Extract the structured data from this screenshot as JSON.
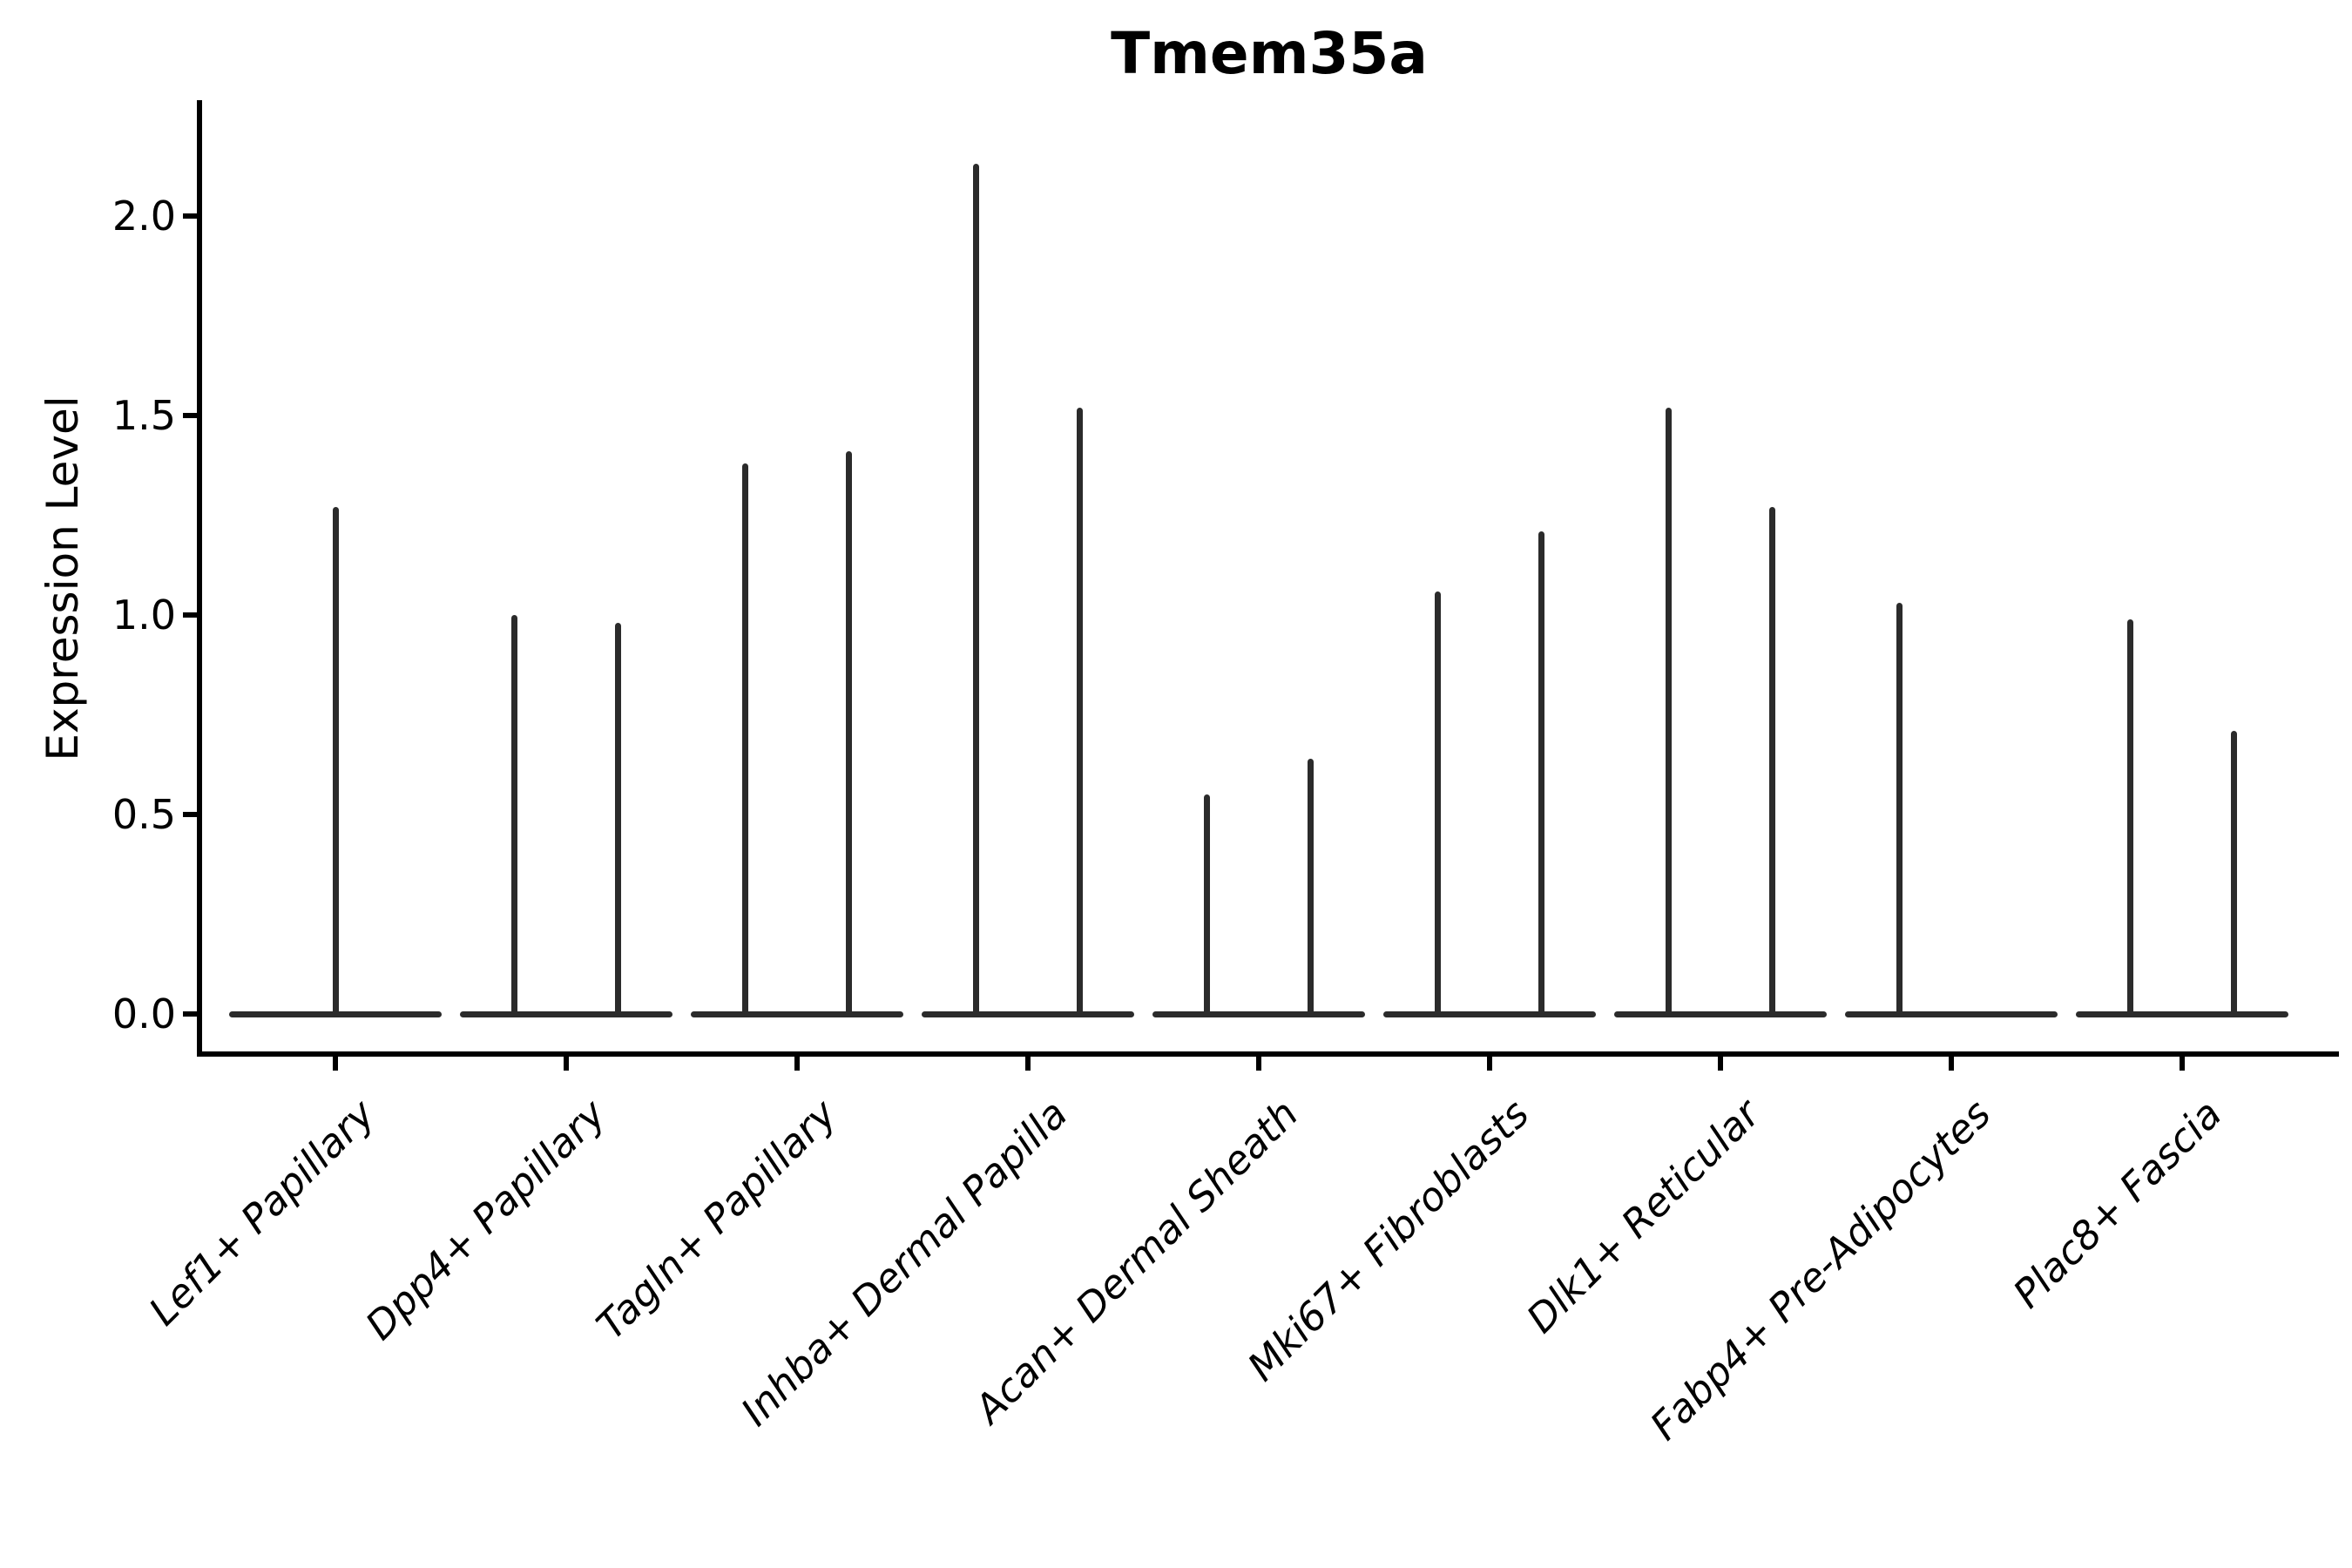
{
  "figure": {
    "background": "#ffffff"
  },
  "chart_data": {
    "type": "violin",
    "title": "Tmem35a",
    "xlabel": "",
    "ylabel": "Expression Level",
    "ytick_labels": [
      "0.0",
      "0.5",
      "1.0",
      "1.5",
      "2.0"
    ],
    "ytick_values": [
      0.0,
      0.5,
      1.0,
      1.5,
      2.0
    ],
    "ylim": [
      -0.11,
      2.29
    ],
    "grid": false,
    "legend": null,
    "colors": {
      "violin": "#2b2b2b",
      "axis": "#000000",
      "text": "#000000"
    },
    "categories": [
      "Lef1+ Papillary",
      "Dpp4+ Papillary",
      "Tagln+ Papillary",
      "Inhba+ Dermal Papilla",
      "Acan+ Dermal Sheath",
      "Mki67+ Fibroblasts",
      "Dlk1+ Reticular",
      "Fabp4+ Pre-Adipocytes",
      "Plac8+ Fascia"
    ],
    "series": [
      {
        "category": "Lef1+ Papillary",
        "violins": [
          {
            "position": "center",
            "max_expression": 1.27
          }
        ]
      },
      {
        "category": "Dpp4+ Papillary",
        "violins": [
          {
            "position": "left",
            "max_expression": 1.0
          },
          {
            "position": "right",
            "max_expression": 0.98
          }
        ]
      },
      {
        "category": "Tagln+ Papillary",
        "violins": [
          {
            "position": "left",
            "max_expression": 1.38
          },
          {
            "position": "right",
            "max_expression": 1.41
          }
        ]
      },
      {
        "category": "Inhba+ Dermal Papilla",
        "violins": [
          {
            "position": "left",
            "max_expression": 2.13
          },
          {
            "position": "right",
            "max_expression": 1.52
          }
        ]
      },
      {
        "category": "Acan+ Dermal Sheath",
        "violins": [
          {
            "position": "left",
            "max_expression": 0.55
          },
          {
            "position": "right",
            "max_expression": 0.64
          }
        ]
      },
      {
        "category": "Mki67+ Fibroblasts",
        "violins": [
          {
            "position": "left",
            "max_expression": 1.06
          },
          {
            "position": "right",
            "max_expression": 1.21
          }
        ]
      },
      {
        "category": "Dlk1+ Reticular",
        "violins": [
          {
            "position": "left",
            "max_expression": 1.52
          },
          {
            "position": "right",
            "max_expression": 1.27
          }
        ]
      },
      {
        "category": "Fabp4+ Pre-Adipocytes",
        "violins": [
          {
            "position": "left",
            "max_expression": 1.03
          }
        ]
      },
      {
        "category": "Plac8+ Fascia",
        "violins": [
          {
            "position": "left",
            "max_expression": 0.99
          },
          {
            "position": "right",
            "max_expression": 0.71
          }
        ]
      }
    ],
    "notes": "Violin plot; every violin is a flat near-zero body at expression 0 with a thin density spike rising to its maximum expression value."
  }
}
